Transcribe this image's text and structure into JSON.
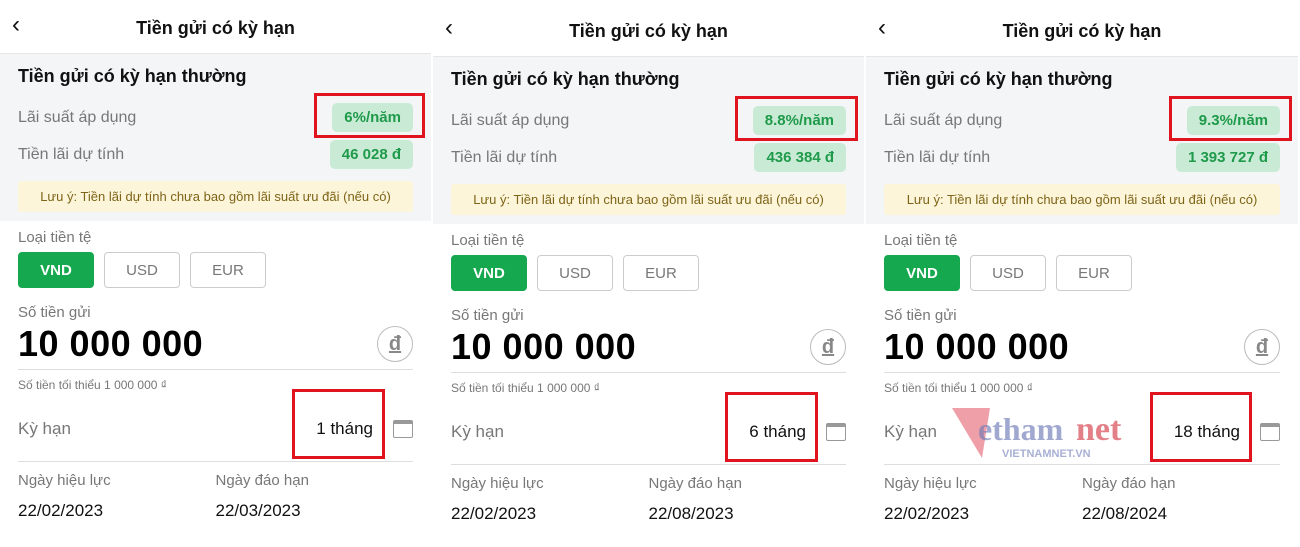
{
  "panels": [
    {
      "title": "Tiền gửi có kỳ hạn",
      "section_title": "Tiền gửi có kỳ hạn thường",
      "rate_label": "Lãi suất áp dụng",
      "rate": "6%/năm",
      "interest_label": "Tiền lãi dự tính",
      "interest": "46 028 đ",
      "note": "Lưu ý: Tiền lãi dự tính chưa bao gồm lãi suất ưu đãi (nếu có)",
      "currency_label": "Loại tiền tệ",
      "currencies": [
        "VND",
        "USD",
        "EUR"
      ],
      "amount_label": "Số tiền gửi",
      "amount": "10 000 000",
      "currency_symbol": "đ",
      "min_note": "Số tiền tối thiểu 1 000 000 ₫",
      "term_label": "Kỳ hạn",
      "term": "1 tháng",
      "start_label": "Ngày hiệu lực",
      "start": "22/02/2023",
      "end_label": "Ngày đáo hạn",
      "end": "22/03/2023"
    },
    {
      "title": "Tiền gửi có kỳ hạn",
      "section_title": "Tiền gửi có kỳ hạn thường",
      "rate_label": "Lãi suất áp dụng",
      "rate": "8.8%/năm",
      "interest_label": "Tiền lãi dự tính",
      "interest": "436 384 đ",
      "note": "Lưu ý: Tiền lãi dự tính chưa bao gồm lãi suất ưu đãi (nếu có)",
      "currency_label": "Loại tiền tệ",
      "currencies": [
        "VND",
        "USD",
        "EUR"
      ],
      "amount_label": "Số tiền gửi",
      "amount": "10 000 000",
      "currency_symbol": "đ",
      "min_note": "Số tiền tối thiểu 1 000 000 ₫",
      "term_label": "Kỳ hạn",
      "term": "6 tháng",
      "start_label": "Ngày hiệu lực",
      "start": "22/02/2023",
      "end_label": "Ngày đáo hạn",
      "end": "22/08/2023"
    },
    {
      "title": "Tiền gửi có kỳ hạn",
      "section_title": "Tiền gửi có kỳ hạn thường",
      "rate_label": "Lãi suất áp dụng",
      "rate": "9.3%/năm",
      "interest_label": "Tiền lãi dự tính",
      "interest": "1 393 727 đ",
      "note": "Lưu ý: Tiền lãi dự tính chưa bao gồm lãi suất ưu đãi (nếu có)",
      "currency_label": "Loại tiền tệ",
      "currencies": [
        "VND",
        "USD",
        "EUR"
      ],
      "amount_label": "Số tiền gửi",
      "amount": "10 000 000",
      "currency_symbol": "đ",
      "min_note": "Số tiền tối thiểu 1 000 000 ₫",
      "term_label": "Kỳ hạn",
      "term": "18 tháng",
      "start_label": "Ngày hiệu lực",
      "start": "22/02/2023",
      "end_label": "Ngày đáo hạn",
      "end": "22/08/2024"
    }
  ],
  "selected_currency": "VND",
  "colors": {
    "accent": "#15a84e",
    "badge_bg": "#c9ebd6",
    "highlight": "#e0141e"
  },
  "watermark": {
    "logo": "vietnamnet",
    "sub": "VIETNAMNET.VN"
  }
}
